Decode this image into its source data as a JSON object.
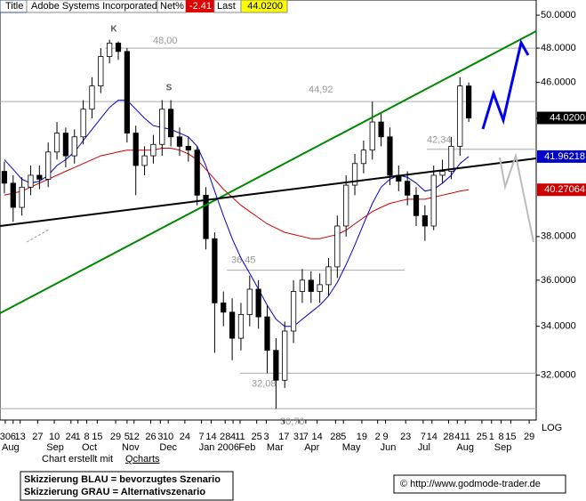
{
  "header": {
    "title_tab": "Title",
    "name": "Adobe Systems Incorporated",
    "net_label": "Net%",
    "net_value": "-2.41",
    "last_label": "Last",
    "last_value": "44.0200"
  },
  "chart_data": {
    "type": "candlestick",
    "log_scale": true,
    "axis_label": "LOG",
    "ylim": [
      30.27,
      50.95
    ],
    "xlim": [
      0,
      61.2
    ],
    "yticks": [
      {
        "value": 50,
        "label": "50.0000"
      },
      {
        "value": 48,
        "label": "48.0000"
      },
      {
        "value": 46,
        "label": "46.0000"
      },
      {
        "value": 44,
        "label": "44.0000"
      },
      {
        "value": 38,
        "label": "38.0000"
      },
      {
        "value": 36,
        "label": "36.0000"
      },
      {
        "value": 34,
        "label": "34.0000"
      },
      {
        "value": 32,
        "label": "32.0000"
      }
    ],
    "xticks": [
      {
        "value": 0.6,
        "label": "30"
      },
      {
        "value": 1.5,
        "label": "6"
      },
      {
        "value": 2.3,
        "label": "13"
      },
      {
        "value": 4.3,
        "label": "27"
      },
      {
        "value": 6.2,
        "label": "10"
      },
      {
        "value": 8.1,
        "label": "24"
      },
      {
        "value": 8.9,
        "label": "1"
      },
      {
        "value": 9.9,
        "label": "8"
      },
      {
        "value": 11.1,
        "label": "15"
      },
      {
        "value": 13.2,
        "label": "29"
      },
      {
        "value": 14.5,
        "label": "5"
      },
      {
        "value": 15.3,
        "label": "12"
      },
      {
        "value": 17.2,
        "label": "26"
      },
      {
        "value": 18.3,
        "label": "3"
      },
      {
        "value": 19.2,
        "label": "10"
      },
      {
        "value": 21.1,
        "label": "24"
      },
      {
        "value": 23.0,
        "label": "7"
      },
      {
        "value": 24.1,
        "label": "14"
      },
      {
        "value": 25.7,
        "label": "28"
      },
      {
        "value": 26.6,
        "label": "4"
      },
      {
        "value": 27.4,
        "label": "11"
      },
      {
        "value": 29.3,
        "label": "25"
      },
      {
        "value": 30.4,
        "label": "3"
      },
      {
        "value": 32.4,
        "label": "17"
      },
      {
        "value": 34.1,
        "label": "31"
      },
      {
        "value": 34.9,
        "label": "7"
      },
      {
        "value": 36.2,
        "label": "14"
      },
      {
        "value": 38.3,
        "label": "28"
      },
      {
        "value": 39.2,
        "label": "5"
      },
      {
        "value": 41.3,
        "label": "19"
      },
      {
        "value": 43.1,
        "label": "2"
      },
      {
        "value": 44.0,
        "label": "9"
      },
      {
        "value": 46.3,
        "label": "23"
      },
      {
        "value": 48.3,
        "label": "7"
      },
      {
        "value": 49.3,
        "label": "14"
      },
      {
        "value": 51.2,
        "label": "28"
      },
      {
        "value": 52.2,
        "label": "4"
      },
      {
        "value": 53.1,
        "label": "11"
      },
      {
        "value": 55.0,
        "label": "25"
      },
      {
        "value": 56.1,
        "label": "1"
      },
      {
        "value": 57.2,
        "label": "8"
      },
      {
        "value": 58.3,
        "label": "15"
      },
      {
        "value": 60.4,
        "label": "29"
      }
    ],
    "month_ticks": [
      {
        "value": 1.2,
        "label": "Aug"
      },
      {
        "value": 6.3,
        "label": "Sep"
      },
      {
        "value": 10.2,
        "label": "Oct"
      },
      {
        "value": 14.9,
        "label": "Nov"
      },
      {
        "value": 19.2,
        "label": "Dec"
      },
      {
        "value": 25.0,
        "label": "Jan 2006"
      },
      {
        "value": 28.2,
        "label": "Feb"
      },
      {
        "value": 31.4,
        "label": "Mar"
      },
      {
        "value": 35.6,
        "label": "Apr"
      },
      {
        "value": 40.1,
        "label": "May"
      },
      {
        "value": 44.3,
        "label": "Jun"
      },
      {
        "value": 48.4,
        "label": "Jul"
      },
      {
        "value": 53.1,
        "label": "Aug"
      },
      {
        "value": 57.4,
        "label": "Sep"
      }
    ],
    "candles": {
      "open": [
        41.2,
        40.6,
        39.4,
        40.4,
        41.0,
        40.8,
        42.2,
        43.2,
        42.0,
        43.0,
        44.5,
        45.8,
        47.5,
        48.3,
        47.8,
        43.2,
        41.5,
        42.0,
        42.6,
        44.5,
        43.0,
        42.5,
        42.3,
        40.0,
        37.9,
        35.0,
        34.6,
        33.5,
        34.5,
        35.6,
        34.4,
        33.0,
        31.8,
        33.8,
        35.5,
        36.0,
        35.5,
        35.8,
        36.6,
        38.5,
        40.5,
        41.6,
        42.3,
        43.8,
        43.0,
        41.0,
        40.7,
        40.0,
        39.0,
        38.5,
        41.0,
        41.2,
        42.5,
        45.8
      ],
      "high": [
        41.7,
        41.0,
        40.9,
        41.5,
        41.5,
        42.7,
        43.8,
        43.5,
        43.4,
        45.0,
        46.3,
        48.0,
        48.5,
        48.4,
        48.0,
        43.6,
        42.5,
        43.1,
        45.0,
        45.0,
        43.5,
        43.0,
        42.5,
        40.4,
        38.2,
        35.5,
        35.2,
        35.0,
        36.2,
        36.0,
        34.9,
        33.5,
        34.2,
        36.0,
        36.5,
        36.4,
        36.3,
        37.0,
        39.0,
        41.0,
        42.1,
        42.8,
        44.92,
        44.3,
        43.5,
        41.5,
        41.2,
        40.4,
        39.5,
        41.5,
        41.8,
        43.0,
        46.3,
        46.0
      ],
      "low": [
        40.1,
        38.7,
        39.0,
        40.0,
        40.3,
        40.4,
        41.8,
        41.4,
        41.6,
        42.6,
        44.0,
        45.4,
        47.1,
        47.3,
        42.7,
        40.0,
        41.0,
        41.6,
        42.0,
        42.5,
        42.0,
        41.7,
        39.5,
        37.4,
        32.9,
        34.0,
        32.6,
        33.0,
        34.0,
        33.9,
        32.08,
        30.7,
        31.5,
        33.3,
        35.0,
        35.0,
        35.0,
        35.3,
        36.1,
        38.0,
        40.0,
        41.1,
        41.8,
        42.5,
        40.5,
        40.2,
        39.5,
        38.5,
        37.8,
        38.3,
        40.6,
        40.8,
        42.0,
        43.8
      ],
      "close": [
        40.6,
        39.4,
        40.4,
        41.0,
        40.8,
        42.2,
        43.2,
        42.0,
        43.0,
        44.5,
        45.8,
        47.5,
        48.3,
        47.8,
        43.2,
        41.5,
        42.0,
        42.6,
        44.5,
        43.0,
        42.5,
        42.3,
        40.0,
        37.9,
        35.0,
        34.6,
        33.5,
        34.5,
        35.6,
        34.4,
        33.0,
        31.8,
        33.8,
        35.5,
        36.0,
        35.5,
        35.8,
        36.6,
        38.5,
        40.5,
        41.6,
        42.3,
        43.8,
        43.0,
        41.0,
        40.7,
        40.0,
        39.0,
        38.5,
        41.0,
        41.2,
        42.5,
        45.8,
        44.02
      ],
      "last_label": "44.0200",
      "up_color": "#ffffff",
      "down_color": "#000000"
    },
    "series": [
      {
        "color": "#0000cc",
        "values": [
          41.8,
          41.3,
          40.8,
          40.6,
          40.7,
          41.0,
          41.5,
          41.8,
          42.2,
          42.8,
          43.4,
          44.0,
          44.6,
          45.0,
          45.0,
          44.5,
          44.0,
          43.6,
          43.5,
          43.4,
          43.2,
          43.0,
          42.5,
          41.5,
          40.2,
          39.0,
          37.9,
          37.0,
          36.3,
          35.6,
          34.9,
          34.3,
          34.0,
          34.0,
          34.3,
          34.6,
          34.9,
          35.3,
          35.9,
          36.7,
          37.6,
          38.6,
          39.6,
          40.4,
          40.8,
          41.0,
          40.9,
          40.6,
          40.2,
          40.3,
          40.6,
          41.0,
          41.6,
          41.96218
        ]
      },
      {
        "color": "#cc0000",
        "values": [
          40.0,
          40.1,
          40.2,
          40.4,
          40.6,
          40.8,
          41.0,
          41.2,
          41.4,
          41.6,
          41.8,
          42.0,
          42.1,
          42.2,
          42.3,
          42.3,
          42.3,
          42.3,
          42.4,
          42.4,
          42.3,
          42.1,
          41.8,
          41.3,
          40.8,
          40.3,
          39.9,
          39.5,
          39.2,
          38.9,
          38.6,
          38.4,
          38.2,
          38.1,
          38.0,
          37.9,
          37.9,
          38.0,
          38.1,
          38.3,
          38.6,
          38.9,
          39.2,
          39.4,
          39.6,
          39.7,
          39.8,
          39.8,
          39.8,
          39.9,
          40.0,
          40.1,
          40.2,
          40.27064
        ]
      }
    ],
    "levels": [
      {
        "value": 48.0,
        "label": "48,00",
        "from": 12,
        "to": 61.2
      },
      {
        "value": 44.92,
        "label": "44,92",
        "from": 0,
        "to": 61.2
      },
      {
        "value": 42.34,
        "label": "42,34",
        "from": 48.7,
        "to": 61.2
      },
      {
        "value": 36.45,
        "label": "36,45",
        "from": 25.9,
        "to": 46.2
      },
      {
        "value": 32.08,
        "label": "32,08",
        "from": 27.4,
        "to": 61.2
      },
      {
        "value": 30.7,
        "label": "30,70",
        "from": 0,
        "to": 61.2
      }
    ],
    "markers": [
      "K",
      "S"
    ]
  },
  "footer": {
    "credit": "Chart erstellt mit ",
    "credit_link": "Qcharts",
    "legend_line1": "Skizzierung BLAU = bevorzugtes Szenario",
    "legend_line2": "Skizzierung GRAU = Alternativszenario",
    "copyright": "© http://www.godmode-trader.de"
  }
}
